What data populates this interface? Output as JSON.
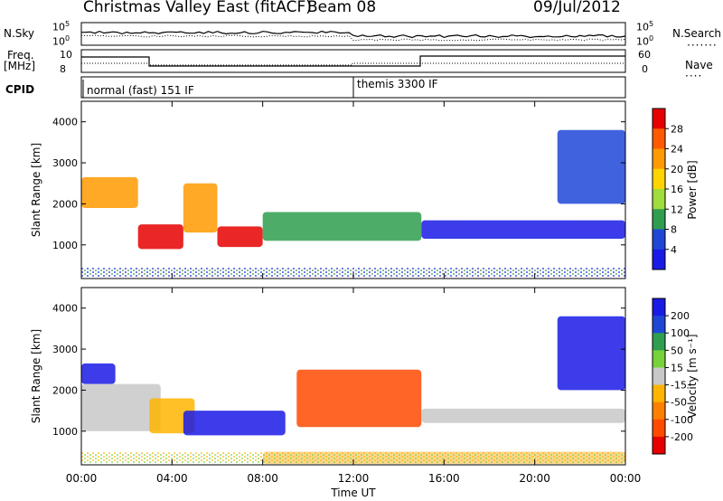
{
  "header": {
    "station": "Christmas Valley East (fitACF)",
    "beam": "Beam 08",
    "date": "09/Jul/2012"
  },
  "strip_panels": {
    "sky_label": "N.Sky",
    "sky_ticks": [
      "10^5",
      "10^0"
    ],
    "sky_ticks_right": [
      "10^5",
      "10^0"
    ],
    "search_label": "N.Search",
    "freq_label_1": "Freq.",
    "freq_label_2": "[MHz]",
    "freq_ticks": [
      "10",
      "8"
    ],
    "nave_ticks": [
      "60",
      "0"
    ],
    "nave_label": "Nave",
    "cpid_label": "CPID",
    "cpid_segments": [
      {
        "label": "normal (fast) 151 IF",
        "start": "00:00",
        "end": "12:00"
      },
      {
        "label": "themis 3300 IF",
        "start": "12:00",
        "end": "24:00"
      }
    ]
  },
  "chart_data": [
    {
      "type": "heatmap",
      "title": "",
      "xlabel": "Time UT",
      "ylabel": "Slant Range [km]",
      "x_ticks": [
        "00:00",
        "04:00",
        "08:00",
        "12:00",
        "16:00",
        "20:00",
        "00:00"
      ],
      "y_ticks": [
        1000,
        2000,
        3000,
        4000
      ],
      "xlim_hours": [
        0,
        24
      ],
      "ylim_km": [
        180,
        4500
      ],
      "colorbar": {
        "label": "Power [dB]",
        "ticks": [
          "28",
          "24",
          "20",
          "16",
          "12",
          "8",
          "4"
        ],
        "colors": [
          "#e60000",
          "#ff5a00",
          "#ff9a00",
          "#ffd400",
          "#9fdc3c",
          "#2f9e4f",
          "#1f47d6",
          "#1a1ae6"
        ]
      },
      "echo_regions": [
        {
          "t_start": 0.0,
          "t_end": 2.5,
          "range_km_low": 1900,
          "range_km_high": 2650,
          "level": "mid",
          "color": "#ff9a00"
        },
        {
          "t_start": 2.5,
          "t_end": 4.5,
          "range_km_low": 900,
          "range_km_high": 1500,
          "level": "high",
          "color": "#e60000"
        },
        {
          "t_start": 4.5,
          "t_end": 6.0,
          "range_km_low": 1300,
          "range_km_high": 2500,
          "level": "mid",
          "color": "#ff9a00"
        },
        {
          "t_start": 6.0,
          "t_end": 8.0,
          "range_km_low": 950,
          "range_km_high": 1450,
          "level": "high",
          "color": "#e60000"
        },
        {
          "t_start": 8.0,
          "t_end": 15.0,
          "range_km_low": 1100,
          "range_km_high": 1800,
          "level": "low-mid",
          "color": "#2f9e4f"
        },
        {
          "t_start": 15.0,
          "t_end": 24.0,
          "range_km_low": 1150,
          "range_km_high": 1600,
          "level": "low",
          "color": "#1a1ae6"
        },
        {
          "t_start": 21.0,
          "t_end": 24.0,
          "range_km_low": 2000,
          "range_km_high": 3800,
          "level": "low",
          "color": "#1f47d6"
        }
      ]
    },
    {
      "type": "heatmap",
      "title": "",
      "xlabel": "Time UT",
      "ylabel": "Slant Range [km]",
      "x_ticks": [
        "00:00",
        "04:00",
        "08:00",
        "12:00",
        "16:00",
        "20:00",
        "00:00"
      ],
      "y_ticks": [
        1000,
        2000,
        3000,
        4000
      ],
      "xlim_hours": [
        0,
        24
      ],
      "ylim_km": [
        180,
        4500
      ],
      "colorbar": {
        "label": "Velocity [m s⁻¹]",
        "ticks": [
          "200",
          "100",
          "50",
          "15",
          "-15",
          "-50",
          "-100",
          "-200"
        ],
        "colors": [
          "#1a1ae6",
          "#1f47d6",
          "#2f9e4f",
          "#76d23a",
          "#c8c8c8",
          "#ffb400",
          "#ff8000",
          "#ff4a00",
          "#e60000"
        ]
      },
      "echo_regions": [
        {
          "t_start": 0.0,
          "t_end": 1.5,
          "range_km_low": 2150,
          "range_km_high": 2650,
          "velocity": "positive",
          "color": "#1a1ae6"
        },
        {
          "t_start": 0.0,
          "t_end": 3.5,
          "range_km_low": 1000,
          "range_km_high": 2150,
          "velocity": "near-zero",
          "color": "#c8c8c8"
        },
        {
          "t_start": 3.0,
          "t_end": 5.0,
          "range_km_low": 950,
          "range_km_high": 1800,
          "velocity": "negative",
          "color": "#ffb400"
        },
        {
          "t_start": 4.5,
          "t_end": 9.0,
          "range_km_low": 900,
          "range_km_high": 1500,
          "velocity": "positive",
          "color": "#1a1ae6"
        },
        {
          "t_start": 9.5,
          "t_end": 15.0,
          "range_km_low": 1100,
          "range_km_high": 2500,
          "velocity": "negative",
          "color": "#ff4a00"
        },
        {
          "t_start": 15.0,
          "t_end": 24.0,
          "range_km_low": 1200,
          "range_km_high": 1550,
          "velocity": "near-zero",
          "color": "#c8c8c8"
        },
        {
          "t_start": 21.0,
          "t_end": 24.0,
          "range_km_low": 2000,
          "range_km_high": 3800,
          "velocity": "positive",
          "color": "#1a1ae6"
        },
        {
          "t_start": 8.0,
          "t_end": 24.0,
          "range_km_low": 200,
          "range_km_high": 500,
          "velocity": "negative",
          "color": "#ffd07a"
        }
      ]
    }
  ]
}
